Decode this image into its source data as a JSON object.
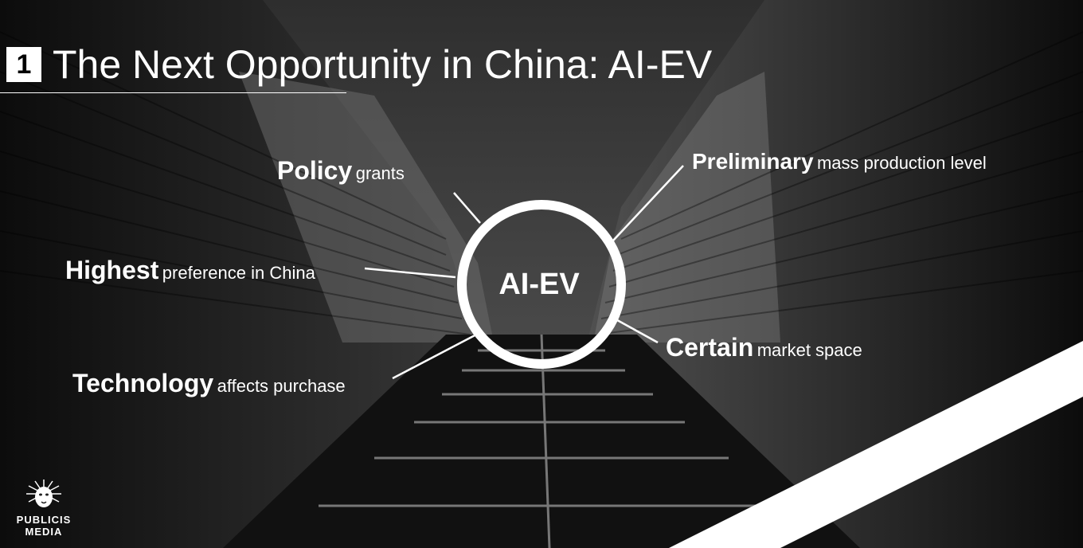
{
  "title": {
    "number": "1",
    "text": "The Next Opportunity in China: AI-EV"
  },
  "center": {
    "label": "AI-EV"
  },
  "labels": [
    {
      "bold": "Policy",
      "light": "grants"
    },
    {
      "bold": "Preliminary",
      "light": "mass production level"
    },
    {
      "bold": "Highest",
      "light": "preference in China"
    },
    {
      "bold": "Certain",
      "light": "market space"
    },
    {
      "bold": "Technology",
      "light": "affects purchase"
    }
  ],
  "logo": {
    "line1": "PUBLICIS",
    "line2": "MEDIA",
    "icon": "lion-head-icon"
  },
  "colors": {
    "text": "#ffffff",
    "background": "#262626"
  }
}
